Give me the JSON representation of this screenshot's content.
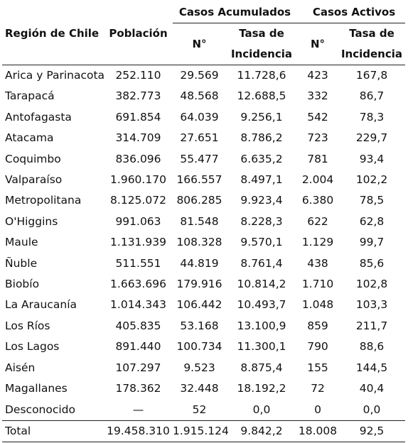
{
  "header": {
    "region_label": "Región de Chile",
    "population_label": "Población",
    "group_acumulados": "Casos Acumulados",
    "group_activos": "Casos Activos",
    "n_label": "N°",
    "tasa_label_line1": "Tasa de",
    "tasa_label_line2": "Incidencia"
  },
  "rows": [
    {
      "region": "Arica y Parinacota",
      "poblacion": "252.110",
      "acum_n": "29.569",
      "acum_tasa": "11.728,6",
      "act_n": "423",
      "act_tasa": "167,8"
    },
    {
      "region": "Tarapacá",
      "poblacion": "382.773",
      "acum_n": "48.568",
      "acum_tasa": "12.688,5",
      "act_n": "332",
      "act_tasa": "86,7"
    },
    {
      "region": "Antofagasta",
      "poblacion": "691.854",
      "acum_n": "64.039",
      "acum_tasa": "9.256,1",
      "act_n": "542",
      "act_tasa": "78,3"
    },
    {
      "region": "Atacama",
      "poblacion": "314.709",
      "acum_n": "27.651",
      "acum_tasa": "8.786,2",
      "act_n": "723",
      "act_tasa": "229,7"
    },
    {
      "region": "Coquimbo",
      "poblacion": "836.096",
      "acum_n": "55.477",
      "acum_tasa": "6.635,2",
      "act_n": "781",
      "act_tasa": "93,4"
    },
    {
      "region": "Valparaíso",
      "poblacion": "1.960.170",
      "acum_n": "166.557",
      "acum_tasa": "8.497,1",
      "act_n": "2.004",
      "act_tasa": "102,2"
    },
    {
      "region": "Metropolitana",
      "poblacion": "8.125.072",
      "acum_n": "806.285",
      "acum_tasa": "9.923,4",
      "act_n": "6.380",
      "act_tasa": "78,5"
    },
    {
      "region": "O'Higgins",
      "poblacion": "991.063",
      "acum_n": "81.548",
      "acum_tasa": "8.228,3",
      "act_n": "622",
      "act_tasa": "62,8"
    },
    {
      "region": "Maule",
      "poblacion": "1.131.939",
      "acum_n": "108.328",
      "acum_tasa": "9.570,1",
      "act_n": "1.129",
      "act_tasa": "99,7"
    },
    {
      "region": "Ñuble",
      "poblacion": "511.551",
      "acum_n": "44.819",
      "acum_tasa": "8.761,4",
      "act_n": "438",
      "act_tasa": "85,6"
    },
    {
      "region": "Biobío",
      "poblacion": "1.663.696",
      "acum_n": "179.916",
      "acum_tasa": "10.814,2",
      "act_n": "1.710",
      "act_tasa": "102,8"
    },
    {
      "region": "La Araucanía",
      "poblacion": "1.014.343",
      "acum_n": "106.442",
      "acum_tasa": "10.493,7",
      "act_n": "1.048",
      "act_tasa": "103,3"
    },
    {
      "region": "Los Ríos",
      "poblacion": "405.835",
      "acum_n": "53.168",
      "acum_tasa": "13.100,9",
      "act_n": "859",
      "act_tasa": "211,7"
    },
    {
      "region": "Los Lagos",
      "poblacion": "891.440",
      "acum_n": "100.734",
      "acum_tasa": "11.300,1",
      "act_n": "790",
      "act_tasa": "88,6"
    },
    {
      "region": "Aisén",
      "poblacion": "107.297",
      "acum_n": "9.523",
      "acum_tasa": "8.875,4",
      "act_n": "155",
      "act_tasa": "144,5"
    },
    {
      "region": "Magallanes",
      "poblacion": "178.362",
      "acum_n": "32.448",
      "acum_tasa": "18.192,2",
      "act_n": "72",
      "act_tasa": "40,4"
    },
    {
      "region": "Desconocido",
      "poblacion": "—",
      "acum_n": "52",
      "acum_tasa": "0,0",
      "act_n": "0",
      "act_tasa": "0,0"
    }
  ],
  "total": {
    "region": "Total",
    "poblacion": "19.458.310",
    "acum_n": "1.915.124",
    "acum_tasa": "9.842,2",
    "act_n": "18.008",
    "act_tasa": "92,5"
  }
}
